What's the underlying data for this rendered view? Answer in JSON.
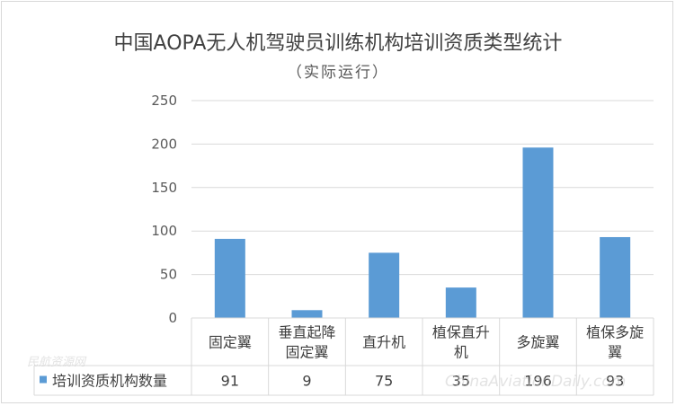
{
  "chart_data": {
    "type": "bar",
    "title": "中国AOPA无人机驾驶员训练机构培训资质类型统计",
    "subtitle": "（实际运行）",
    "categories": [
      "固定翼",
      "垂直起降固定翼",
      "直升机",
      "植保直升机",
      "多旋翼",
      "植保多旋翼"
    ],
    "category_lines": [
      [
        "固定翼"
      ],
      [
        "垂直起降",
        "固定翼"
      ],
      [
        "直升机"
      ],
      [
        "植保直升",
        "机"
      ],
      [
        "多旋翼"
      ],
      [
        "植保多旋",
        "翼"
      ]
    ],
    "series": [
      {
        "name": "培训资质机构数量",
        "values": [
          91,
          9,
          75,
          35,
          196,
          93
        ],
        "color": "#5b9bd5"
      }
    ],
    "ylim": [
      0,
      250
    ],
    "yticks": [
      0,
      50,
      100,
      150,
      200,
      250
    ],
    "grid": true,
    "legend": "data-table",
    "data_table": true
  },
  "watermarks": {
    "left": "民航资源网",
    "right": "ChinaAviationDaily.com"
  }
}
